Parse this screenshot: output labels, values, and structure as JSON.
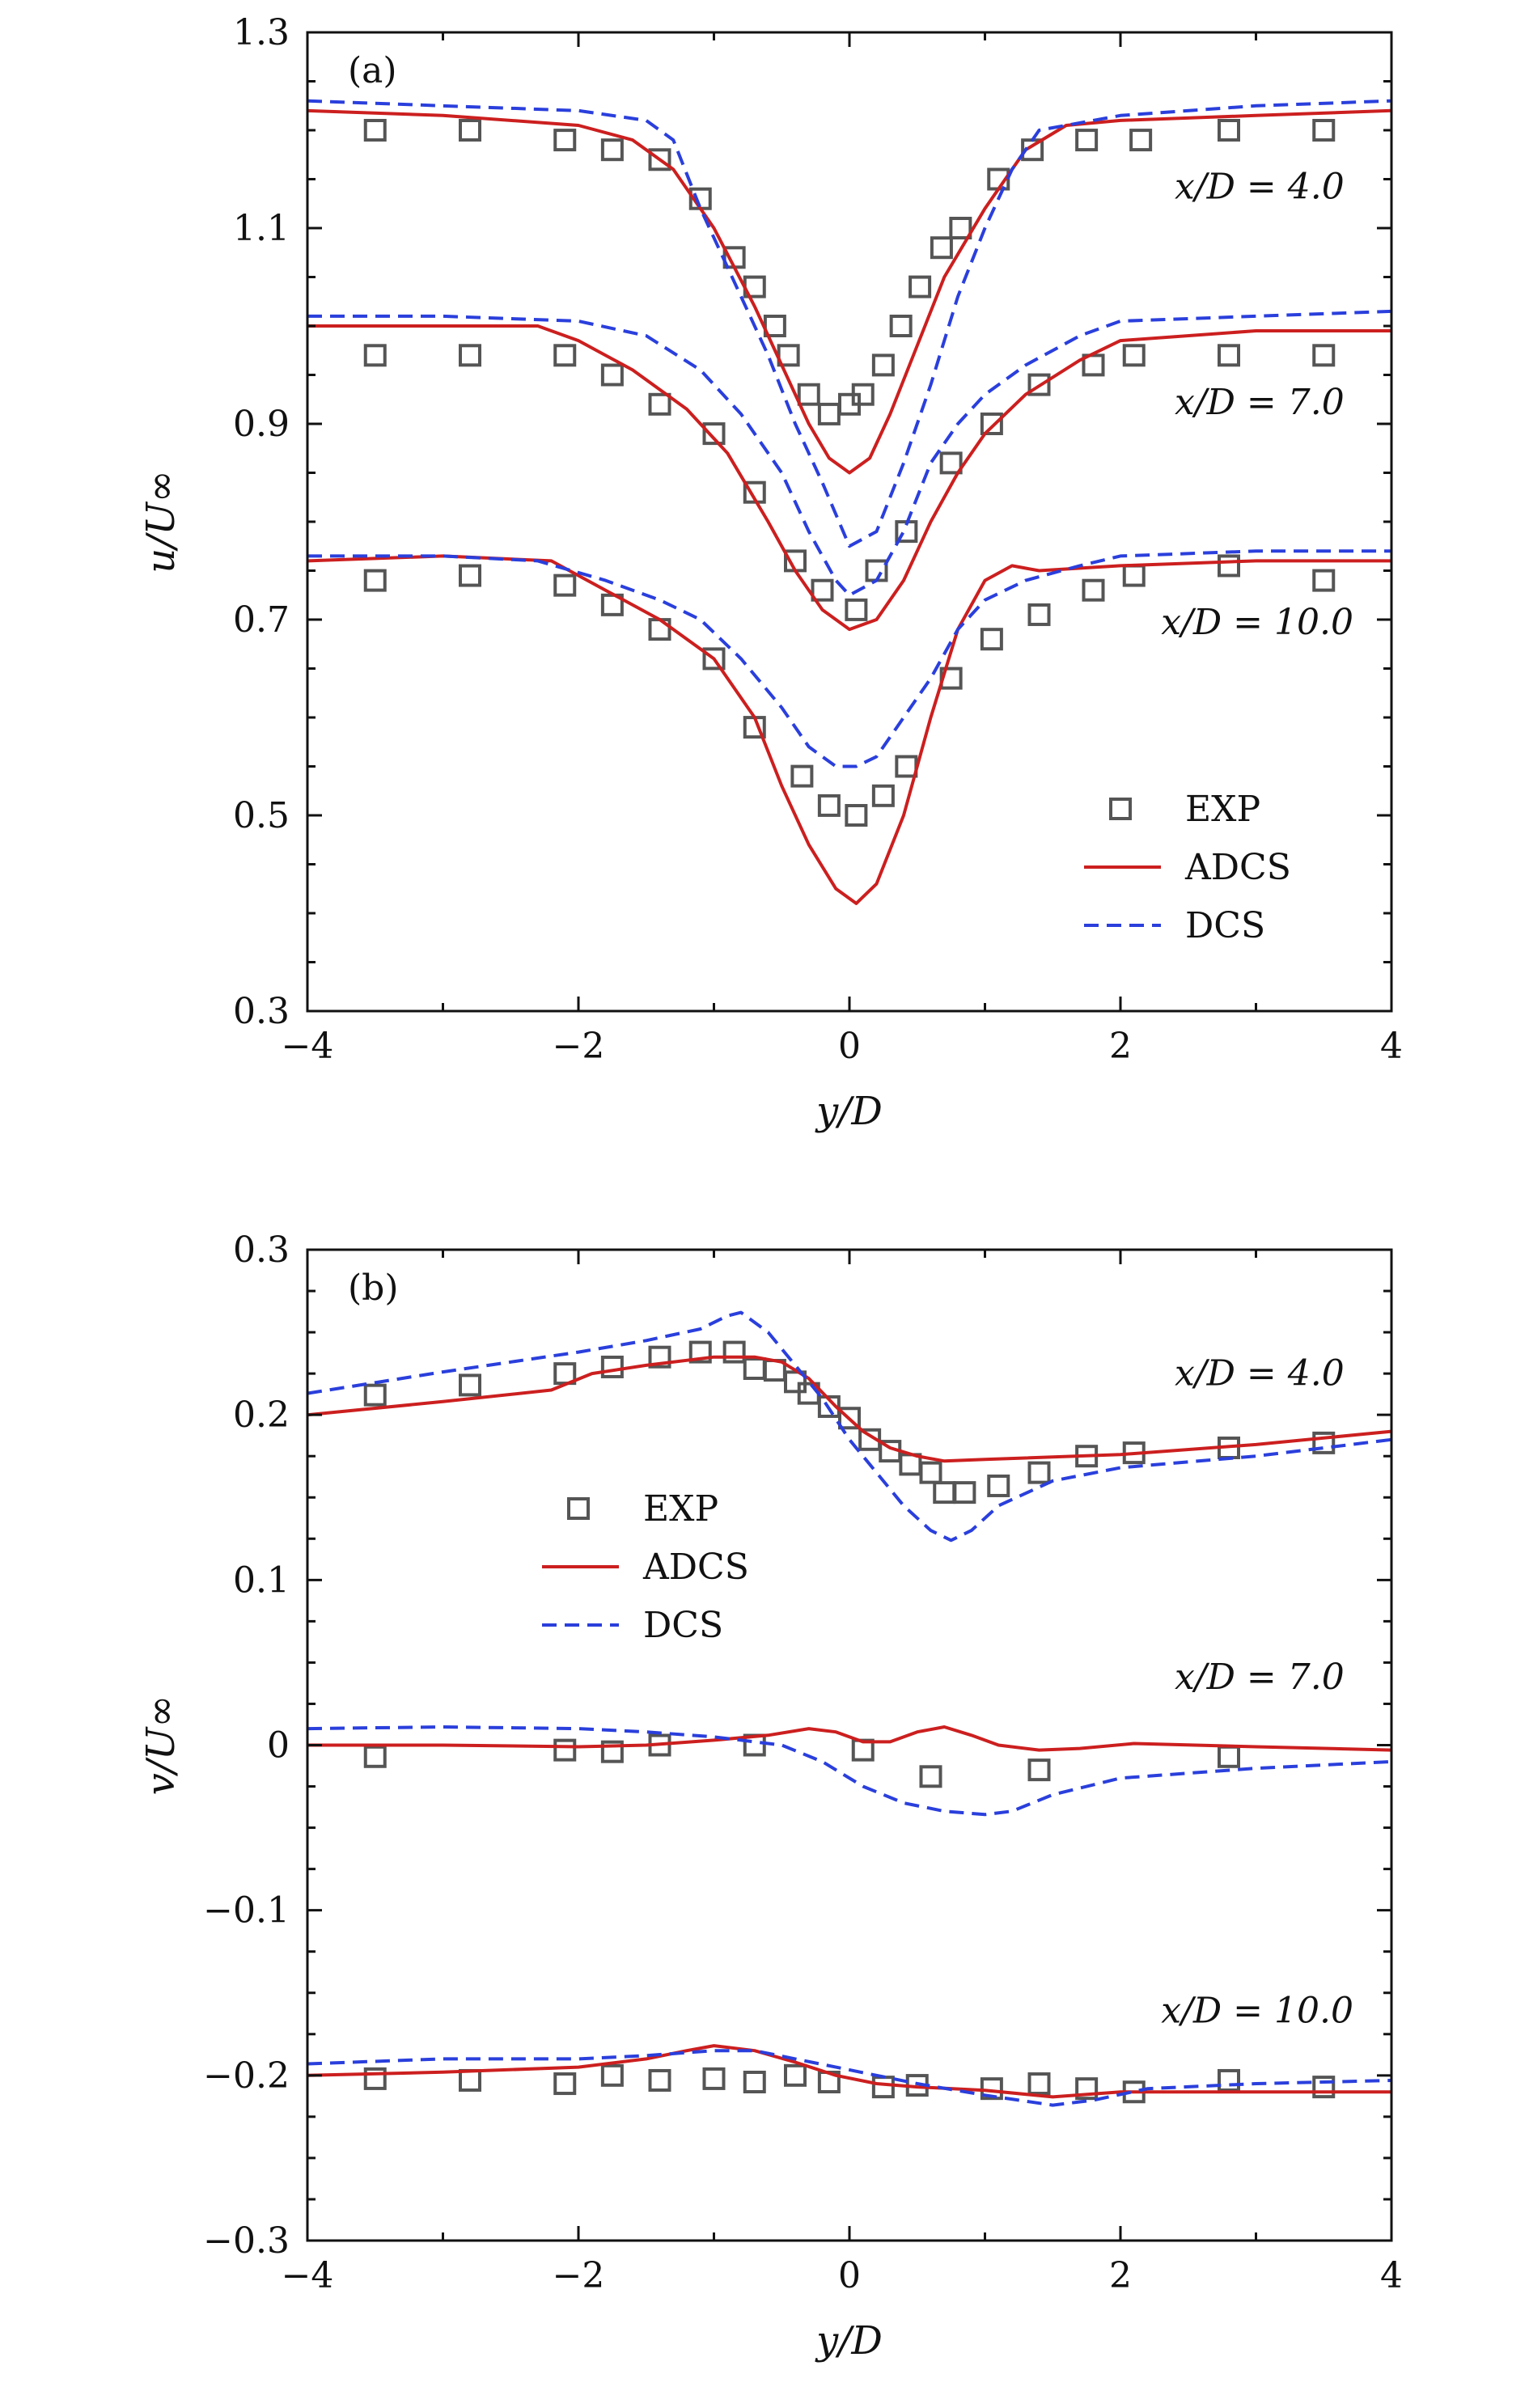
{
  "chart_data": [
    {
      "type": "line",
      "panel_label": "(a)",
      "xlabel": "y/D",
      "ylabel": "u/U∞",
      "xlim": [
        -4,
        4
      ],
      "ylim": [
        0.3,
        1.3
      ],
      "xticks": [
        "−4",
        "−2",
        "0",
        "2",
        "4"
      ],
      "yticks": [
        "0.3",
        "0.5",
        "0.7",
        "0.9",
        "1.1",
        "1.3"
      ],
      "xtick_values": [
        -4,
        -2,
        0,
        2,
        4
      ],
      "ytick_values": [
        0.3,
        0.5,
        0.7,
        0.9,
        1.1,
        1.3
      ],
      "legend": {
        "placement": "lower-right",
        "entries": [
          "EXP",
          "ADCS",
          "DCS"
        ]
      },
      "annotations": [
        {
          "text": "x/D = 4.0",
          "x": 2.4,
          "y": 1.13
        },
        {
          "text": "x/D = 7.0",
          "x": 2.4,
          "y": 0.91
        },
        {
          "text": "x/D = 10.0",
          "x": 2.3,
          "y": 0.685
        }
      ],
      "series": [
        {
          "name": "EXP",
          "style": "marker",
          "color": "#555555",
          "group": "x/D = 4.0",
          "x": [
            -3.5,
            -2.8,
            -2.1,
            -1.75,
            -1.4,
            -1.1,
            -0.85,
            -0.7,
            -0.55,
            -0.45,
            -0.3,
            -0.15,
            0.0,
            0.1,
            0.25,
            0.38,
            0.52,
            0.68,
            0.82,
            1.1,
            1.35,
            1.75,
            2.15,
            2.8,
            3.5
          ],
          "y": [
            1.2,
            1.2,
            1.19,
            1.18,
            1.17,
            1.13,
            1.07,
            1.04,
            1.0,
            0.97,
            0.93,
            0.91,
            0.92,
            0.93,
            0.96,
            1.0,
            1.04,
            1.08,
            1.1,
            1.15,
            1.18,
            1.19,
            1.19,
            1.2,
            1.2
          ]
        },
        {
          "name": "EXP",
          "style": "marker",
          "color": "#555555",
          "group": "x/D = 7.0",
          "x": [
            -3.5,
            -2.8,
            -2.1,
            -1.75,
            -1.4,
            -1.0,
            -0.7,
            -0.4,
            -0.2,
            0.05,
            0.2,
            0.42,
            0.75,
            1.05,
            1.4,
            1.8,
            2.1,
            2.8,
            3.5
          ],
          "y": [
            0.97,
            0.97,
            0.97,
            0.95,
            0.92,
            0.89,
            0.83,
            0.76,
            0.73,
            0.71,
            0.75,
            0.79,
            0.86,
            0.9,
            0.94,
            0.96,
            0.97,
            0.97,
            0.97
          ]
        },
        {
          "name": "EXP",
          "style": "marker",
          "color": "#555555",
          "group": "x/D = 10.0",
          "x": [
            -3.5,
            -2.8,
            -2.1,
            -1.75,
            -1.4,
            -1.0,
            -0.7,
            -0.35,
            -0.15,
            0.05,
            0.25,
            0.42,
            0.75,
            1.05,
            1.4,
            1.8,
            2.1,
            2.8,
            3.5
          ],
          "y": [
            0.74,
            0.745,
            0.735,
            0.715,
            0.69,
            0.66,
            0.59,
            0.54,
            0.51,
            0.5,
            0.52,
            0.55,
            0.64,
            0.68,
            0.705,
            0.73,
            0.745,
            0.755,
            0.74
          ]
        },
        {
          "name": "ADCS",
          "style": "solid",
          "color": "#cc1f1f",
          "group": "x/D = 4.0",
          "x": [
            -4,
            -3,
            -2,
            -1.6,
            -1.3,
            -1.0,
            -0.7,
            -0.5,
            -0.3,
            -0.15,
            0,
            0.15,
            0.3,
            0.5,
            0.7,
            1.0,
            1.3,
            1.6,
            2,
            3,
            4
          ],
          "y": [
            1.22,
            1.215,
            1.205,
            1.19,
            1.16,
            1.1,
            1.02,
            0.96,
            0.9,
            0.865,
            0.85,
            0.865,
            0.91,
            0.98,
            1.05,
            1.12,
            1.18,
            1.205,
            1.21,
            1.215,
            1.22
          ]
        },
        {
          "name": "ADCS",
          "style": "solid",
          "color": "#cc1f1f",
          "group": "x/D = 7.0",
          "x": [
            -4,
            -3,
            -2.3,
            -2.0,
            -1.6,
            -1.2,
            -0.9,
            -0.6,
            -0.4,
            -0.2,
            0,
            0.2,
            0.4,
            0.6,
            0.8,
            1.0,
            1.3,
            1.7,
            2.0,
            3,
            4
          ],
          "y": [
            1.0,
            1.0,
            1.0,
            0.985,
            0.955,
            0.915,
            0.87,
            0.8,
            0.75,
            0.71,
            0.69,
            0.7,
            0.74,
            0.8,
            0.85,
            0.89,
            0.93,
            0.965,
            0.985,
            0.995,
            0.995
          ]
        },
        {
          "name": "ADCS",
          "style": "solid",
          "color": "#cc1f1f",
          "group": "x/D = 10.0",
          "x": [
            -4,
            -3,
            -2.2,
            -1.8,
            -1.4,
            -1.0,
            -0.7,
            -0.5,
            -0.3,
            -0.1,
            0.05,
            0.2,
            0.4,
            0.6,
            0.8,
            1.0,
            1.2,
            1.4,
            2,
            3,
            4
          ],
          "y": [
            0.76,
            0.765,
            0.76,
            0.73,
            0.7,
            0.66,
            0.6,
            0.53,
            0.47,
            0.425,
            0.41,
            0.43,
            0.5,
            0.6,
            0.69,
            0.74,
            0.755,
            0.75,
            0.755,
            0.76,
            0.76
          ]
        },
        {
          "name": "DCS",
          "style": "dashed",
          "color": "#2a3fdc",
          "group": "x/D = 4.0",
          "x": [
            -4,
            -3,
            -2,
            -1.5,
            -1.3,
            -1.1,
            -0.9,
            -0.6,
            -0.4,
            -0.2,
            0,
            0.2,
            0.4,
            0.6,
            0.8,
            1.0,
            1.2,
            1.4,
            2,
            3,
            4
          ],
          "y": [
            1.23,
            1.225,
            1.22,
            1.21,
            1.19,
            1.12,
            1.06,
            0.97,
            0.9,
            0.84,
            0.775,
            0.79,
            0.86,
            0.94,
            1.03,
            1.1,
            1.16,
            1.2,
            1.215,
            1.225,
            1.23
          ]
        },
        {
          "name": "DCS",
          "style": "dashed",
          "color": "#2a3fdc",
          "group": "x/D = 7.0",
          "x": [
            -4,
            -3,
            -2,
            -1.5,
            -1.1,
            -0.8,
            -0.5,
            -0.3,
            -0.1,
            0,
            0.2,
            0.4,
            0.6,
            0.8,
            1.0,
            1.3,
            1.7,
            2.0,
            3,
            4
          ],
          "y": [
            1.01,
            1.01,
            1.005,
            0.99,
            0.955,
            0.91,
            0.85,
            0.79,
            0.74,
            0.725,
            0.74,
            0.79,
            0.86,
            0.9,
            0.93,
            0.96,
            0.99,
            1.005,
            1.01,
            1.015
          ]
        },
        {
          "name": "DCS",
          "style": "dashed",
          "color": "#2a3fdc",
          "group": "x/D = 10.0",
          "x": [
            -4,
            -3,
            -2.3,
            -1.8,
            -1.4,
            -1.1,
            -0.8,
            -0.5,
            -0.3,
            -0.1,
            0.05,
            0.2,
            0.4,
            0.6,
            0.8,
            1.0,
            1.3,
            1.7,
            2.0,
            3,
            4
          ],
          "y": [
            0.765,
            0.765,
            0.76,
            0.74,
            0.72,
            0.7,
            0.66,
            0.61,
            0.57,
            0.55,
            0.55,
            0.56,
            0.6,
            0.64,
            0.69,
            0.72,
            0.74,
            0.755,
            0.765,
            0.77,
            0.77
          ]
        }
      ]
    },
    {
      "type": "line",
      "panel_label": "(b)",
      "xlabel": "y/D",
      "ylabel": "v/U∞",
      "xlim": [
        -4,
        4
      ],
      "ylim": [
        -0.3,
        0.3
      ],
      "xticks": [
        "−4",
        "−2",
        "0",
        "2",
        "4"
      ],
      "yticks": [
        "−0.3",
        "−0.2",
        "−0.1",
        "0",
        "0.1",
        "0.2",
        "0.3"
      ],
      "xtick_values": [
        -4,
        -2,
        0,
        2,
        4
      ],
      "ytick_values": [
        -0.3,
        -0.2,
        -0.1,
        0,
        0.1,
        0.2,
        0.3
      ],
      "legend": {
        "placement": "center-left",
        "entries": [
          "EXP",
          "ADCS",
          "DCS"
        ]
      },
      "annotations": [
        {
          "text": "x/D = 4.0",
          "x": 2.4,
          "y": 0.218
        },
        {
          "text": "x/D = 7.0",
          "x": 2.4,
          "y": 0.034
        },
        {
          "text": "x/D = 10.0",
          "x": 2.3,
          "y": -0.168
        }
      ],
      "series": [
        {
          "name": "EXP",
          "style": "marker",
          "color": "#555555",
          "group": "x/D = 4.0",
          "x": [
            -3.5,
            -2.8,
            -2.1,
            -1.75,
            -1.4,
            -1.1,
            -0.85,
            -0.7,
            -0.55,
            -0.4,
            -0.3,
            -0.15,
            0.0,
            0.15,
            0.3,
            0.45,
            0.6,
            0.7,
            0.85,
            1.1,
            1.4,
            1.75,
            2.1,
            2.8,
            3.5
          ],
          "y": [
            0.212,
            0.218,
            0.225,
            0.229,
            0.235,
            0.238,
            0.238,
            0.228,
            0.227,
            0.22,
            0.213,
            0.205,
            0.198,
            0.185,
            0.178,
            0.17,
            0.165,
            0.153,
            0.153,
            0.157,
            0.165,
            0.175,
            0.177,
            0.18,
            0.183
          ]
        },
        {
          "name": "EXP",
          "style": "marker",
          "color": "#555555",
          "group": "x/D = 7.0",
          "x": [
            -3.5,
            -2.1,
            -1.75,
            -1.4,
            -0.7,
            0.1,
            0.6,
            1.4,
            2.8
          ],
          "y": [
            -0.007,
            -0.003,
            -0.004,
            0.0,
            0.0,
            -0.003,
            -0.019,
            -0.015,
            -0.007
          ]
        },
        {
          "name": "EXP",
          "style": "marker",
          "color": "#555555",
          "group": "x/D = 10.0",
          "x": [
            -3.5,
            -2.8,
            -2.1,
            -1.75,
            -1.4,
            -1.0,
            -0.7,
            -0.4,
            -0.15,
            0.25,
            0.5,
            1.05,
            1.4,
            1.75,
            2.1,
            2.8,
            3.5
          ],
          "y": [
            -0.202,
            -0.203,
            -0.205,
            -0.2,
            -0.203,
            -0.202,
            -0.204,
            -0.2,
            -0.204,
            -0.207,
            -0.206,
            -0.208,
            -0.205,
            -0.208,
            -0.21,
            -0.203,
            -0.207
          ]
        },
        {
          "name": "ADCS",
          "style": "solid",
          "color": "#cc1f1f",
          "group": "x/D = 4.0",
          "x": [
            -4,
            -3,
            -2.2,
            -1.9,
            -1.5,
            -1.0,
            -0.7,
            -0.5,
            -0.3,
            -0.1,
            0.1,
            0.3,
            0.5,
            0.7,
            1.0,
            2,
            3,
            4
          ],
          "y": [
            0.2,
            0.208,
            0.215,
            0.225,
            0.23,
            0.235,
            0.235,
            0.232,
            0.222,
            0.205,
            0.19,
            0.18,
            0.175,
            0.172,
            0.173,
            0.176,
            0.182,
            0.19
          ]
        },
        {
          "name": "ADCS",
          "style": "solid",
          "color": "#cc1f1f",
          "group": "x/D = 7.0",
          "x": [
            -4,
            -3,
            -2,
            -1.5,
            -1.0,
            -0.6,
            -0.3,
            -0.1,
            0.1,
            0.3,
            0.5,
            0.7,
            0.9,
            1.1,
            1.4,
            1.7,
            2.1,
            3,
            4
          ],
          "y": [
            0.0,
            0.0,
            -0.001,
            0.0,
            0.003,
            0.006,
            0.01,
            0.008,
            0.002,
            0.002,
            0.008,
            0.011,
            0.006,
            0.0,
            -0.003,
            -0.002,
            0.001,
            -0.001,
            -0.003
          ]
        },
        {
          "name": "ADCS",
          "style": "solid",
          "color": "#cc1f1f",
          "group": "x/D = 10.0",
          "x": [
            -4,
            -3,
            -2,
            -1.5,
            -1.2,
            -1.0,
            -0.7,
            -0.4,
            -0.1,
            0.2,
            0.5,
            1.0,
            1.5,
            2.0,
            3,
            4
          ],
          "y": [
            -0.2,
            -0.198,
            -0.195,
            -0.19,
            -0.185,
            -0.182,
            -0.185,
            -0.192,
            -0.2,
            -0.205,
            -0.207,
            -0.209,
            -0.213,
            -0.21,
            -0.21,
            -0.21
          ]
        },
        {
          "name": "DCS",
          "style": "dashed",
          "color": "#2a3fdc",
          "group": "x/D = 4.0",
          "x": [
            -4,
            -3,
            -2,
            -1.5,
            -1.1,
            -0.9,
            -0.8,
            -0.6,
            -0.4,
            -0.2,
            0,
            0.2,
            0.4,
            0.6,
            0.75,
            0.9,
            1.1,
            1.5,
            2,
            3,
            4
          ],
          "y": [
            0.213,
            0.226,
            0.238,
            0.245,
            0.252,
            0.26,
            0.262,
            0.25,
            0.23,
            0.21,
            0.185,
            0.165,
            0.145,
            0.13,
            0.124,
            0.13,
            0.145,
            0.16,
            0.168,
            0.175,
            0.185
          ]
        },
        {
          "name": "DCS",
          "style": "dashed",
          "color": "#2a3fdc",
          "group": "x/D = 7.0",
          "x": [
            -4,
            -3,
            -2,
            -1.5,
            -1.0,
            -0.5,
            -0.2,
            0.1,
            0.4,
            0.7,
            1.0,
            1.2,
            1.5,
            2.0,
            3,
            4
          ],
          "y": [
            0.01,
            0.011,
            0.01,
            0.008,
            0.005,
            0.0,
            -0.01,
            -0.025,
            -0.035,
            -0.04,
            -0.042,
            -0.04,
            -0.03,
            -0.02,
            -0.014,
            -0.01
          ]
        },
        {
          "name": "DCS",
          "style": "dashed",
          "color": "#2a3fdc",
          "group": "x/D = 10.0",
          "x": [
            -4,
            -3,
            -2,
            -1.5,
            -1.0,
            -0.7,
            -0.4,
            -0.1,
            0.2,
            0.5,
            1.0,
            1.5,
            1.8,
            2.2,
            3,
            4
          ],
          "y": [
            -0.193,
            -0.19,
            -0.19,
            -0.188,
            -0.185,
            -0.185,
            -0.19,
            -0.195,
            -0.2,
            -0.205,
            -0.212,
            -0.218,
            -0.215,
            -0.208,
            -0.205,
            -0.203
          ]
        }
      ]
    }
  ]
}
